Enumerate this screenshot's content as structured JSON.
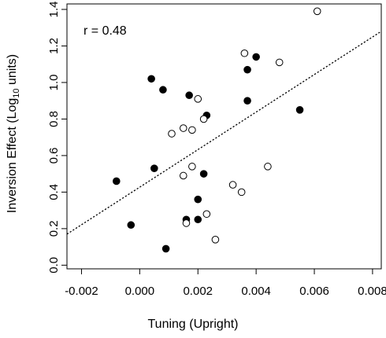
{
  "chart_data": {
    "type": "scatter",
    "xlabel": "Tuning (Upright)",
    "ylabel_main": "Inversion Effect (Log",
    "ylabel_sub": "10",
    "ylabel_tail": " units)",
    "annotation": "r = 0.48",
    "xlim": [
      -0.0025,
      0.0083
    ],
    "ylim": [
      -0.02,
      1.43
    ],
    "x_ticks": [
      {
        "value": -0.002,
        "label": "-0.002"
      },
      {
        "value": 0.0,
        "label": "0.000"
      },
      {
        "value": 0.002,
        "label": "0.002"
      },
      {
        "value": 0.004,
        "label": "0.004"
      },
      {
        "value": 0.006,
        "label": "0.006"
      },
      {
        "value": 0.008,
        "label": "0.008"
      }
    ],
    "y_ticks": [
      {
        "value": 0.0,
        "label": "0.0"
      },
      {
        "value": 0.2,
        "label": "0.2"
      },
      {
        "value": 0.4,
        "label": "0.4"
      },
      {
        "value": 0.6,
        "label": "0.6"
      },
      {
        "value": 0.8,
        "label": "0.8"
      },
      {
        "value": 1.0,
        "label": "1.0"
      },
      {
        "value": 1.2,
        "label": "1.2"
      },
      {
        "value": 1.4,
        "label": "1.4"
      }
    ],
    "grid": false,
    "fit_line": {
      "style": "dotted",
      "x0": -0.0025,
      "y0": 0.17,
      "x1": 0.0083,
      "y1": 1.28
    },
    "series": [
      {
        "marker": "filled-circle",
        "points": [
          {
            "x": 0.0004,
            "y": 1.02
          },
          {
            "x": 0.0008,
            "y": 0.96
          },
          {
            "x": 0.0017,
            "y": 0.93
          },
          {
            "x": 0.0023,
            "y": 0.82
          },
          {
            "x": 0.0037,
            "y": 1.07
          },
          {
            "x": 0.004,
            "y": 1.14
          },
          {
            "x": 0.0037,
            "y": 0.9
          },
          {
            "x": 0.0055,
            "y": 0.85
          },
          {
            "x": 0.0022,
            "y": 0.5
          },
          {
            "x": 0.0005,
            "y": 0.53
          },
          {
            "x": -0.0008,
            "y": 0.46
          },
          {
            "x": -0.0003,
            "y": 0.22
          },
          {
            "x": 0.0009,
            "y": 0.09
          },
          {
            "x": 0.0016,
            "y": 0.25
          },
          {
            "x": 0.002,
            "y": 0.25
          },
          {
            "x": 0.002,
            "y": 0.36
          }
        ]
      },
      {
        "marker": "open-circle",
        "points": [
          {
            "x": 0.0061,
            "y": 1.39
          },
          {
            "x": 0.0036,
            "y": 1.16
          },
          {
            "x": 0.0048,
            "y": 1.11
          },
          {
            "x": 0.002,
            "y": 0.91
          },
          {
            "x": 0.0022,
            "y": 0.8
          },
          {
            "x": 0.0011,
            "y": 0.72
          },
          {
            "x": 0.0015,
            "y": 0.75
          },
          {
            "x": 0.0018,
            "y": 0.74
          },
          {
            "x": 0.0015,
            "y": 0.49
          },
          {
            "x": 0.0018,
            "y": 0.54
          },
          {
            "x": 0.0044,
            "y": 0.54
          },
          {
            "x": 0.0032,
            "y": 0.44
          },
          {
            "x": 0.0035,
            "y": 0.4
          },
          {
            "x": 0.0023,
            "y": 0.28
          },
          {
            "x": 0.0016,
            "y": 0.23
          },
          {
            "x": 0.0026,
            "y": 0.14
          }
        ]
      }
    ]
  }
}
